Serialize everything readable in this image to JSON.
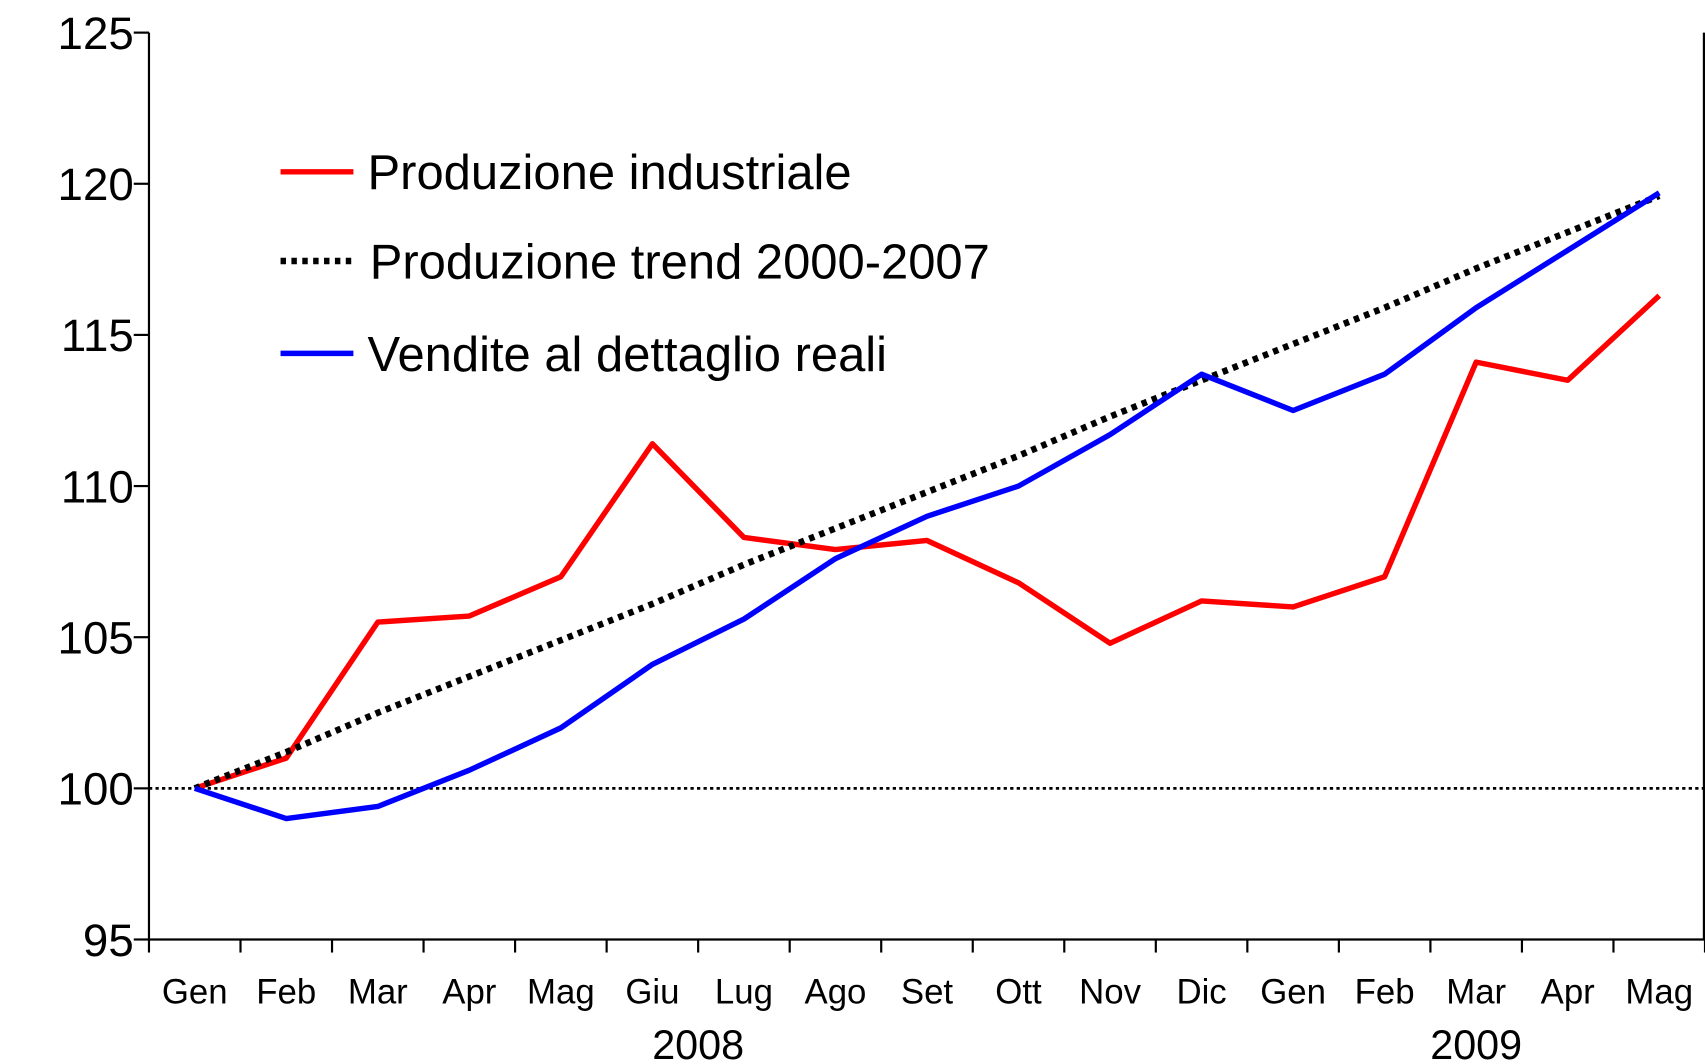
{
  "chart_data": {
    "type": "line",
    "categories": [
      "Gen",
      "Feb",
      "Mar",
      "Apr",
      "Mag",
      "Giu",
      "Lug",
      "Ago",
      "Set",
      "Ott",
      "Nov",
      "Dic",
      "Gen",
      "Feb",
      "Mar",
      "Apr",
      "Mag"
    ],
    "year_labels": [
      "2008",
      "2009"
    ],
    "series": [
      {
        "name": "Produzione industriale",
        "color": "#ff0000",
        "style": "solid",
        "values": [
          100,
          101,
          105.5,
          105.7,
          107,
          111.4,
          108.3,
          107.9,
          108.2,
          106.8,
          104.8,
          106.2,
          106,
          107,
          114.1,
          113.5,
          116.3
        ]
      },
      {
        "name": "Produzione trend 2000-2007",
        "color": "#000000",
        "style": "dotted",
        "values": [
          100,
          101.2,
          102.5,
          103.7,
          104.9,
          106.1,
          107.4,
          108.6,
          109.8,
          111,
          112.3,
          113.5,
          114.7,
          115.9,
          117.2,
          118.4,
          119.6
        ]
      },
      {
        "name": "Vendite al dettaglio reali",
        "color": "#0000ff",
        "style": "solid",
        "values": [
          100,
          99,
          99.4,
          100.6,
          102,
          104.1,
          105.6,
          107.6,
          109,
          110,
          111.7,
          113.7,
          112.5,
          113.7,
          115.9,
          117.8,
          119.7
        ]
      }
    ],
    "reference_line": 100,
    "ylim": [
      95,
      125
    ],
    "yticks": [
      95,
      100,
      105,
      110,
      115,
      120,
      125
    ],
    "grid": false
  }
}
